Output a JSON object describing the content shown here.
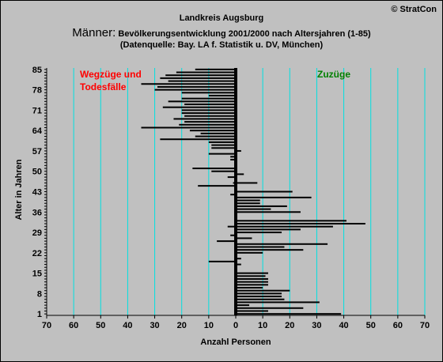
{
  "header": {
    "copyright": "© StratCon",
    "region": "Landkreis Augsburg",
    "gender": "Männer:",
    "subtitle": " Bevölkerungsentwicklung 2001/2000 nach Altersjahren (1-85)",
    "source": "(Datenquelle: Bay. LA f. Statistik u. DV, München)"
  },
  "chart_data": {
    "type": "bar",
    "orientation": "horizontal",
    "xlabel": "Anzahl Personen",
    "ylabel": "Alter in Jahren",
    "xlim": [
      -70,
      70
    ],
    "ylim": [
      1,
      85
    ],
    "x_ticks": [
      -70,
      -60,
      -50,
      -40,
      -30,
      -20,
      -10,
      0,
      10,
      20,
      30,
      40,
      50,
      60,
      70
    ],
    "x_tick_labels": [
      "70",
      "60",
      "50",
      "40",
      "30",
      "20",
      "10",
      "0",
      "10",
      "20",
      "30",
      "40",
      "50",
      "60",
      "70"
    ],
    "y_ticks": [
      1,
      8,
      15,
      22,
      29,
      36,
      43,
      50,
      57,
      64,
      71,
      78,
      85
    ],
    "grid": "vertical",
    "legend_left": "Wegzüge und Todesfälle",
    "legend_left_lines": [
      "Wegzüge und",
      "Todesfälle"
    ],
    "legend_right": "Zuzüge",
    "ages": [
      1,
      2,
      3,
      4,
      5,
      6,
      7,
      8,
      9,
      10,
      11,
      12,
      13,
      14,
      15,
      16,
      17,
      18,
      19,
      20,
      21,
      22,
      23,
      24,
      25,
      26,
      27,
      28,
      29,
      30,
      31,
      32,
      33,
      34,
      35,
      36,
      37,
      38,
      39,
      40,
      41,
      42,
      43,
      44,
      45,
      46,
      47,
      48,
      49,
      50,
      51,
      52,
      53,
      54,
      55,
      56,
      57,
      58,
      59,
      60,
      61,
      62,
      63,
      64,
      65,
      66,
      67,
      68,
      69,
      70,
      71,
      72,
      73,
      74,
      75,
      76,
      77,
      78,
      79,
      80,
      81,
      82,
      83,
      84,
      85
    ],
    "series": [
      {
        "name": "Wegzüge und Todesfälle",
        "color": "#000000",
        "values": [
          0,
          0,
          0,
          0,
          0,
          0,
          0,
          0,
          0,
          0,
          0,
          0,
          0,
          0,
          0,
          0,
          0,
          0,
          -10,
          0,
          0,
          0,
          0,
          0,
          0,
          -7,
          0,
          -2,
          0,
          0,
          -3,
          0,
          0,
          0,
          0,
          0,
          0,
          0,
          0,
          0,
          0,
          -2,
          0,
          0,
          -14,
          -1,
          0,
          -3,
          0,
          -9,
          -16,
          0,
          0,
          -2,
          -2,
          -10,
          0,
          -9,
          -9,
          -10,
          -28,
          -15,
          -13,
          -17,
          -35,
          -21,
          -19,
          -23,
          -19,
          -20,
          -20,
          -27,
          -19,
          -25,
          -20,
          -10,
          -20,
          -30,
          -29,
          -35,
          -25,
          -28,
          -26,
          -22,
          -15
        ]
      },
      {
        "name": "Zuzüge",
        "color": "#000000",
        "values": [
          39,
          12,
          25,
          5,
          31,
          18,
          17,
          17,
          20,
          10,
          12,
          12,
          12,
          11,
          12,
          0,
          0,
          2,
          0,
          2,
          0,
          10,
          25,
          18,
          34,
          0,
          6,
          0,
          17,
          24,
          36,
          48,
          41,
          0,
          0,
          24,
          13,
          19,
          9,
          9,
          28,
          0,
          21,
          0,
          0,
          8,
          0,
          0,
          3,
          0,
          0,
          0,
          0,
          0,
          0,
          0,
          2,
          0,
          0,
          0,
          0,
          0,
          0,
          0,
          0,
          0,
          0,
          0,
          0,
          0,
          0,
          0,
          0,
          0,
          0,
          0,
          0,
          0,
          0,
          0,
          0,
          0,
          0,
          0,
          0
        ]
      }
    ]
  }
}
